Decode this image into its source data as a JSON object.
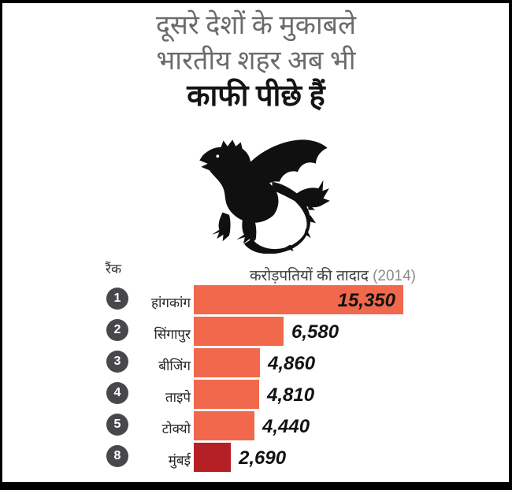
{
  "title": {
    "line1": "दूसरे देशों के मुकाबले",
    "line2": "भारतीय शहर अब भी",
    "line3": "काफी पीछे हैं"
  },
  "illustration": "dragon-silhouette",
  "chart_data": {
    "type": "bar",
    "orientation": "horizontal",
    "rank_header": "रैंक",
    "value_header": "करोड़पतियों की तादाद",
    "value_header_year": "(2014)",
    "max_value": 15350,
    "categories": [
      "हांगकांग",
      "सिंगापुर",
      "बीजिंग",
      "ताइपे",
      "टोक्यो",
      "मुंबई"
    ],
    "values": [
      15350,
      6580,
      4860,
      4810,
      4440,
      2690
    ],
    "rows": [
      {
        "rank": "1",
        "city": "हांगकांग",
        "value": 15350,
        "value_label": "15,350",
        "highlight": false,
        "value_inside": true
      },
      {
        "rank": "2",
        "city": "सिंगापुर",
        "value": 6580,
        "value_label": "6,580",
        "highlight": false,
        "value_inside": false
      },
      {
        "rank": "3",
        "city": "बीजिंग",
        "value": 4860,
        "value_label": "4,860",
        "highlight": false,
        "value_inside": false
      },
      {
        "rank": "4",
        "city": "ताइपे",
        "value": 4810,
        "value_label": "4,810",
        "highlight": false,
        "value_inside": false
      },
      {
        "rank": "5",
        "city": "टोक्यो",
        "value": 4440,
        "value_label": "4,440",
        "highlight": false,
        "value_inside": false
      },
      {
        "rank": "8",
        "city": "मुंबई",
        "value": 2690,
        "value_label": "2,690",
        "highlight": true,
        "value_inside": false
      }
    ],
    "colors": {
      "bar": "#F1684C",
      "highlight_bar": "#B52025",
      "rank_circle": "#48484A"
    },
    "legend": "none",
    "grid": false
  }
}
